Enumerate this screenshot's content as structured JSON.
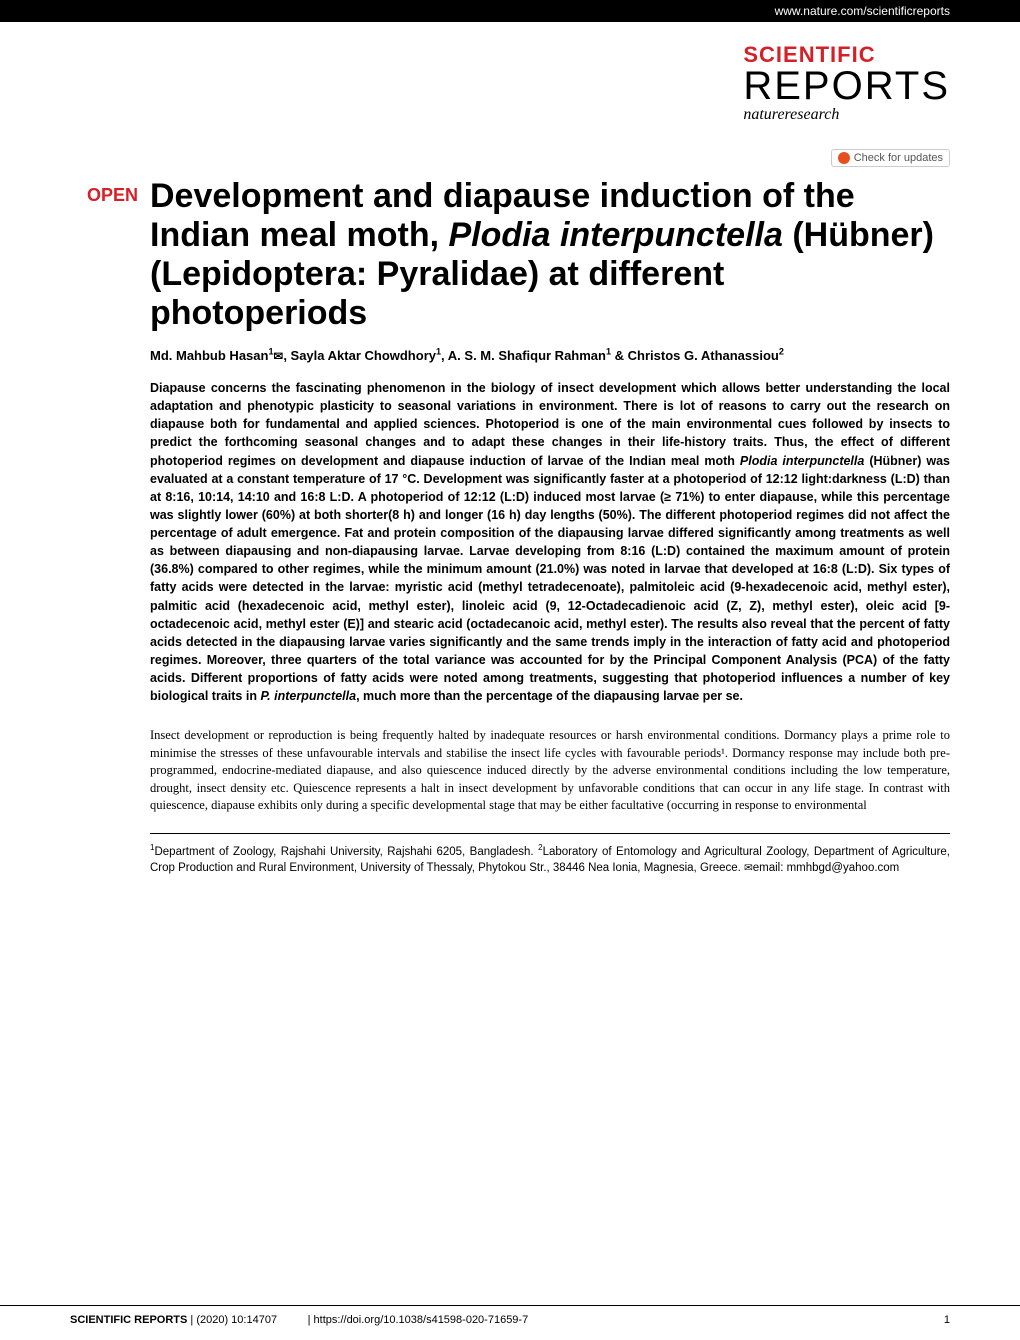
{
  "colors": {
    "accent_red": "#d62027",
    "orange": "#e84e1b",
    "black": "#000000",
    "white": "#ffffff",
    "gray_text": "#555555",
    "border_gray": "#cccccc"
  },
  "top_bar": {
    "url": "www.nature.com/scientificreports"
  },
  "logo": {
    "line1": "SCIENTIFIC",
    "line2": "REPORTS",
    "subline": "natureresearch"
  },
  "check_updates": {
    "text": "Check for updates"
  },
  "open_label": "OPEN",
  "title": {
    "text": "Development and diapause induction of the Indian meal moth, Plodia interpunctella (Hübner) (Lepidoptera: Pyralidae) at different photoperiods",
    "fontsize": 34
  },
  "authors": {
    "list": "Md. Mahbub Hasan¹✉, Sayla Aktar Chowdhory¹, A. S. M. Shafiqur Rahman¹ & Christos G. Athanassiou²"
  },
  "abstract": {
    "text": "Diapause concerns the fascinating phenomenon in the biology of insect development which allows better understanding the local adaptation and phenotypic plasticity to seasonal variations in environment. There is lot of reasons to carry out the research on diapause both for fundamental and applied sciences. Photoperiod is one of the main environmental cues followed by insects to predict the forthcoming seasonal changes and to adapt these changes in their life-history traits. Thus, the effect of different photoperiod regimes on development and diapause induction of larvae of the Indian meal moth Plodia interpunctella (Hübner) was evaluated at a constant temperature of 17 °C. Development was significantly faster at a photoperiod of 12:12 light:darkness (L:D) than at 8:16, 10:14, 14:10 and 16:8 L:D. A photoperiod of 12:12 (L:D) induced most larvae (≥ 71%) to enter diapause, while this percentage was slightly lower (60%) at both shorter(8 h) and longer (16 h) day lengths (50%). The different photoperiod regimes did not affect the percentage of adult emergence. Fat and protein composition of the diapausing larvae differed significantly among treatments as well as between diapausing and non-diapausing larvae. Larvae developing from 8:16 (L:D) contained the maximum amount of protein (36.8%) compared to other regimes, while the minimum amount (21.0%) was noted in larvae that developed at 16:8 (L:D). Six types of fatty acids were detected in the larvae: myristic acid (methyl tetradecenoate), palmitoleic acid (9-hexadecenoic acid, methyl ester), palmitic acid (hexadecenoic acid, methyl ester), linoleic acid (9, 12-Octadecadienoic acid (Z, Z), methyl ester), oleic acid [9-octadecenoic acid, methyl ester (E)] and stearic acid (octadecanoic acid, methyl ester). The results also reveal that the percent of fatty acids detected in the diapausing larvae varies significantly and the same trends imply in the interaction of fatty acid and photoperiod regimes. Moreover, three quarters of the total variance was accounted for by the Principal Component Analysis (PCA) of the fatty acids. Different proportions of fatty acids were noted among treatments, suggesting that photoperiod influences a number of key biological traits in P. interpunctella, much more than the percentage of the diapausing larvae per se."
  },
  "body": {
    "para1": "Insect development or reproduction is being frequently halted by inadequate resources or harsh environmental conditions. Dormancy plays a prime role to minimise the stresses of these unfavourable intervals and stabilise the insect life cycles with favourable periods¹. Dormancy response may include both pre-programmed, endocrine-mediated diapause, and also quiescence induced directly by the adverse environmental conditions including the low temperature, drought, insect density etc. Quiescence represents a halt in insect development by unfavorable conditions that can occur in any life stage. In contrast with quiescence, diapause exhibits only during a specific developmental stage that may be either facultative (occurring in response to environmental"
  },
  "affiliations": {
    "text": "¹Department of Zoology, Rajshahi University, Rajshahi 6205, Bangladesh. ²Laboratory of Entomology and Agricultural Zoology, Department of Agriculture, Crop Production and Rural Environment, University of Thessaly, Phytokou Str., 38446 Nea Ionia, Magnesia, Greece. ✉email: mmhbgd@yahoo.com"
  },
  "footer": {
    "journal": "SCIENTIFIC REPORTS",
    "citation": "(2020) 10:14707",
    "separator": "|",
    "doi": "https://doi.org/10.1038/s41598-020-71659-7",
    "page": "1"
  }
}
